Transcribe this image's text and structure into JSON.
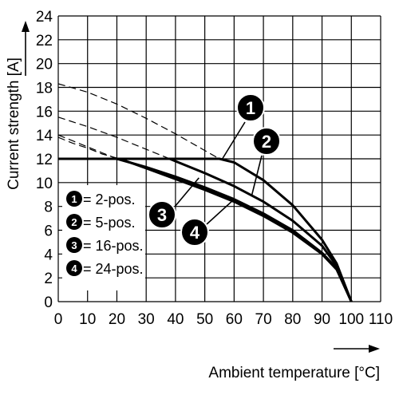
{
  "chart_data": {
    "type": "line",
    "ylabel": "Current strength [A]",
    "xlabel": "Ambient temperature [°C]",
    "xlim": [
      0,
      110
    ],
    "ylim": [
      0,
      24
    ],
    "x_ticks": [
      "0",
      "10",
      "20",
      "30",
      "40",
      "50",
      "60",
      "70",
      "80",
      "90",
      "100",
      "110"
    ],
    "y_ticks": [
      "0",
      "2",
      "4",
      "6",
      "8",
      "10",
      "12",
      "14",
      "16",
      "18",
      "20",
      "22",
      "24"
    ],
    "grid": true,
    "legend_position": "lower-left",
    "legend": [
      {
        "marker": "1",
        "label": "= 2-pos."
      },
      {
        "marker": "2",
        "label": "= 5-pos."
      },
      {
        "marker": "3",
        "label": "= 16-pos."
      },
      {
        "marker": "4",
        "label": "= 24-pos."
      }
    ],
    "series": [
      {
        "marker": "1",
        "solid": [
          [
            0,
            12
          ],
          [
            55,
            12
          ],
          [
            60,
            11.7
          ],
          [
            70,
            10.2
          ],
          [
            80,
            8.1
          ],
          [
            90,
            5.2
          ],
          [
            95,
            3.2
          ],
          [
            100,
            0
          ]
        ],
        "dashed": [
          [
            0,
            18.3
          ],
          [
            10,
            17.6
          ],
          [
            20,
            16.6
          ],
          [
            30,
            15.4
          ],
          [
            40,
            14.1
          ],
          [
            50,
            12.7
          ],
          [
            55,
            12
          ]
        ]
      },
      {
        "marker": "2",
        "solid": [
          [
            0,
            12
          ],
          [
            38,
            12
          ],
          [
            40,
            11.8
          ],
          [
            50,
            10.8
          ],
          [
            60,
            9.7
          ],
          [
            70,
            8.4
          ],
          [
            80,
            6.8
          ],
          [
            90,
            4.7
          ],
          [
            95,
            3.0
          ],
          [
            100,
            0
          ]
        ],
        "dashed": [
          [
            0,
            15.5
          ],
          [
            10,
            14.7
          ],
          [
            20,
            13.8
          ],
          [
            30,
            12.8
          ],
          [
            38,
            12
          ]
        ]
      },
      {
        "marker": "3",
        "solid": [
          [
            0,
            12
          ],
          [
            20,
            12
          ],
          [
            30,
            11.3
          ],
          [
            40,
            10.5
          ],
          [
            50,
            9.6
          ],
          [
            60,
            8.6
          ],
          [
            70,
            7.4
          ],
          [
            80,
            6.0
          ],
          [
            90,
            4.1
          ],
          [
            95,
            2.8
          ],
          [
            100,
            0
          ]
        ],
        "dashed": [
          [
            0,
            14
          ],
          [
            5,
            13.5
          ],
          [
            10,
            13.0
          ],
          [
            15,
            12.5
          ],
          [
            20,
            12
          ]
        ]
      },
      {
        "marker": "4",
        "solid": [
          [
            0,
            12
          ],
          [
            21,
            12
          ],
          [
            30,
            11.2
          ],
          [
            40,
            10.3
          ],
          [
            50,
            9.4
          ],
          [
            60,
            8.4
          ],
          [
            70,
            7.2
          ],
          [
            80,
            5.8
          ],
          [
            90,
            4.0
          ],
          [
            95,
            2.7
          ],
          [
            100,
            0
          ]
        ],
        "dashed": [
          [
            0,
            13.8
          ],
          [
            5,
            13.3
          ],
          [
            10,
            12.9
          ],
          [
            15,
            12.4
          ],
          [
            21,
            12
          ]
        ]
      }
    ],
    "callouts": [
      {
        "marker": "1",
        "point": [
          56,
          12
        ]
      },
      {
        "marker": "2",
        "point": [
          66,
          8.9
        ]
      },
      {
        "marker": "3",
        "point": [
          48,
          10.4
        ]
      },
      {
        "marker": "4",
        "point": [
          60,
          8.6
        ]
      }
    ]
  }
}
